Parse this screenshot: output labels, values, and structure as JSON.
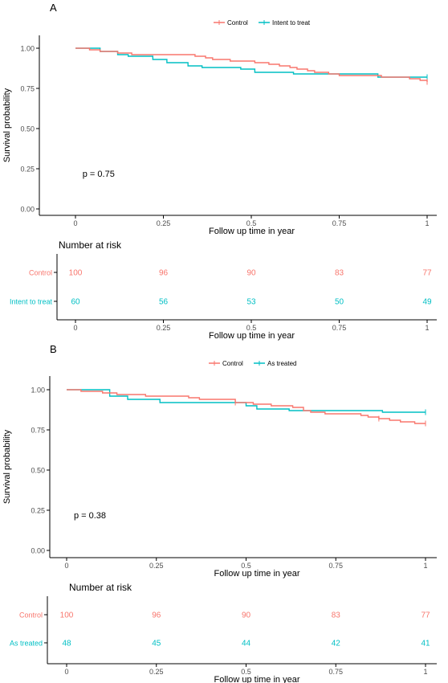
{
  "colors": {
    "control": "#F8766D",
    "treat": "#00BFC4",
    "axis": "#000000",
    "tick_text": "#4d4d4d"
  },
  "chart_data": [
    {
      "type": "line",
      "subtype": "kaplan-meier",
      "panel_label": "A",
      "xlabel": "Follow up time in year",
      "ylabel": "Survival probability",
      "x_ticks": [
        "0",
        "0.25",
        "0.5",
        "0.75",
        "1"
      ],
      "y_ticks": [
        "0.00",
        "0.25",
        "0.50",
        "0.75",
        "1.00"
      ],
      "xlim": [
        0,
        1
      ],
      "ylim": [
        0,
        1
      ],
      "pvalue": "p = 0.75",
      "legend": [
        "Control",
        "Intent to treat"
      ],
      "legend_position": "top",
      "series": [
        {
          "name": "Control",
          "x": [
            0,
            0.04,
            0.07,
            0.09,
            0.12,
            0.14,
            0.16,
            0.19,
            0.26,
            0.34,
            0.37,
            0.39,
            0.44,
            0.51,
            0.55,
            0.58,
            0.61,
            0.63,
            0.66,
            0.68,
            0.72,
            0.75,
            0.87,
            0.95,
            0.98,
            1.0
          ],
          "y": [
            1.0,
            0.99,
            0.98,
            0.98,
            0.97,
            0.97,
            0.96,
            0.96,
            0.96,
            0.95,
            0.94,
            0.93,
            0.92,
            0.91,
            0.9,
            0.89,
            0.88,
            0.87,
            0.86,
            0.85,
            0.84,
            0.83,
            0.82,
            0.81,
            0.8,
            0.79
          ],
          "censor_x": [
            1.0
          ],
          "censor_y": [
            0.79
          ]
        },
        {
          "name": "Intent to treat",
          "x": [
            0,
            0.07,
            0.12,
            0.15,
            0.22,
            0.26,
            0.32,
            0.36,
            0.47,
            0.51,
            0.62,
            0.86,
            1.0
          ],
          "y": [
            1.0,
            0.98,
            0.96,
            0.95,
            0.93,
            0.91,
            0.89,
            0.88,
            0.87,
            0.85,
            0.84,
            0.82,
            0.82
          ],
          "censor_x": [
            1.0
          ],
          "censor_y": [
            0.82
          ]
        }
      ],
      "risk_table": {
        "title": "Number at risk",
        "times": [
          "0",
          "0.25",
          "0.5",
          "0.75",
          "1"
        ],
        "xlabel": "Follow up time in year",
        "rows": [
          {
            "label": "Control",
            "values": [
              "100",
              "96",
              "90",
              "83",
              "77"
            ]
          },
          {
            "label": "Intent to treat",
            "values": [
              "60",
              "56",
              "53",
              "50",
              "49"
            ]
          }
        ]
      }
    },
    {
      "type": "line",
      "subtype": "kaplan-meier",
      "panel_label": "B",
      "xlabel": "Follow up time in year",
      "ylabel": "Survival probability",
      "x_ticks": [
        "0",
        "0.25",
        "0.5",
        "0.75",
        "1"
      ],
      "y_ticks": [
        "0.00",
        "0.25",
        "0.50",
        "0.75",
        "1.00"
      ],
      "xlim": [
        0,
        1
      ],
      "ylim": [
        0,
        1
      ],
      "pvalue": "p = 0.38",
      "legend": [
        "Control",
        "As treated"
      ],
      "legend_position": "top",
      "series": [
        {
          "name": "Control",
          "x": [
            0,
            0.04,
            0.1,
            0.14,
            0.22,
            0.34,
            0.37,
            0.47,
            0.52,
            0.57,
            0.63,
            0.66,
            0.68,
            0.72,
            0.82,
            0.84,
            0.87,
            0.9,
            0.93,
            0.97,
            1.0
          ],
          "y": [
            1.0,
            0.99,
            0.98,
            0.97,
            0.96,
            0.95,
            0.94,
            0.92,
            0.91,
            0.9,
            0.89,
            0.87,
            0.86,
            0.85,
            0.84,
            0.83,
            0.82,
            0.81,
            0.8,
            0.79,
            0.79
          ],
          "censor_x": [
            0.47,
            0.87,
            1.0
          ],
          "censor_y": [
            0.92,
            0.82,
            0.79
          ]
        },
        {
          "name": "As treated",
          "x": [
            0,
            0.12,
            0.17,
            0.26,
            0.5,
            0.53,
            0.62,
            0.88,
            1.0
          ],
          "y": [
            1.0,
            0.96,
            0.94,
            0.92,
            0.9,
            0.88,
            0.87,
            0.86,
            0.86
          ],
          "censor_x": [
            1.0
          ],
          "censor_y": [
            0.86
          ]
        }
      ],
      "risk_table": {
        "title": "Number at risk",
        "times": [
          "0",
          "0.25",
          "0.5",
          "0.75",
          "1"
        ],
        "xlabel": "Follow up time in year",
        "rows": [
          {
            "label": "Control",
            "values": [
              "100",
              "96",
              "90",
              "83",
              "77"
            ]
          },
          {
            "label": "As treated",
            "values": [
              "48",
              "45",
              "44",
              "42",
              "41"
            ]
          }
        ]
      }
    }
  ]
}
